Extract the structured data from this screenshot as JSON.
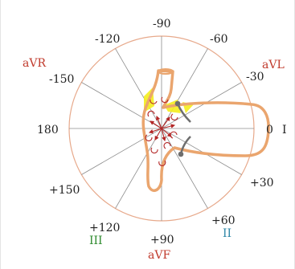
{
  "hexaxial": {
    "angles": [
      {
        "key": "a0",
        "text": "0"
      },
      {
        "key": "a30",
        "text": "+30"
      },
      {
        "key": "a60",
        "text": "+60"
      },
      {
        "key": "a90",
        "text": "+90"
      },
      {
        "key": "a120",
        "text": "+120"
      },
      {
        "key": "a150",
        "text": "+150"
      },
      {
        "key": "a180",
        "text": "180"
      },
      {
        "key": "am150",
        "text": "-150"
      },
      {
        "key": "am120",
        "text": "-120"
      },
      {
        "key": "am90",
        "text": "-90"
      },
      {
        "key": "am60",
        "text": "-60"
      },
      {
        "key": "am30",
        "text": "-30"
      }
    ],
    "leads": {
      "I": "I",
      "II": "II",
      "III": "III",
      "aVR": "aVR",
      "aVL": "aVL",
      "aVF": "aVF"
    }
  },
  "colors": {
    "circle": "#e7a98b",
    "axis_lines": "#8c8c8c",
    "heart_outline": "#eaa56e",
    "vectors": "#b32626",
    "highlight": "#f5ee1e",
    "node": "#6e6e6e",
    "lead_red": "#c0392b",
    "lead_green": "#2e8b2e",
    "lead_blue": "#2e86a6",
    "text": "#222222"
  }
}
